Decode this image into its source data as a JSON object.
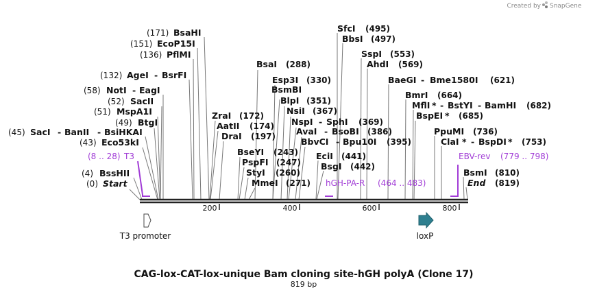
{
  "brand": {
    "created_by": "Created by",
    "name": "SnapGene"
  },
  "title": "CAG-lox-CAT-lox-unique Bam cloning site-hGH polyA (Clone 17)",
  "subtitle": "819 bp",
  "left_labels": [
    {
      "pos": "(171)",
      "a": "BsaHI"
    },
    {
      "pos": "(151)",
      "a": "EcoP15I"
    },
    {
      "pos": "(136)",
      "a": "PflMI"
    },
    {
      "pos": "(132)",
      "a": "AgeI",
      "b": "BsrFI"
    },
    {
      "pos": "(58)",
      "a": "NotI",
      "b": "EagI"
    },
    {
      "pos": "(52)",
      "a": "SacII"
    },
    {
      "pos": "(51)",
      "a": "MspA1I"
    },
    {
      "pos": "(49)",
      "a": "BtgI"
    },
    {
      "pos": "(45)",
      "a": "SacI",
      "b": "BanII",
      "c": "BsiHKAI"
    },
    {
      "pos": "(43)",
      "a": "Eco53kI"
    },
    {
      "pos": "(4)",
      "a": "BssHII"
    },
    {
      "pos": "(0)",
      "a": "Start"
    }
  ],
  "middle_labels": [
    {
      "a": "BsaI",
      "pos": "(288)"
    },
    {
      "a": "Esp3I",
      "pos": "(330)"
    },
    {
      "a": "BsmBI"
    },
    {
      "a": "BlpI",
      "pos": "(351)"
    },
    {
      "a": "NsiI",
      "pos": "(367)"
    },
    {
      "a": "NspI",
      "b": "SphI",
      "pos": "(369)"
    },
    {
      "a": "AvaI",
      "b": "BsoBI",
      "pos": "(386)"
    },
    {
      "a": "BbvCI",
      "b": "Bpu10I",
      "pos": "(395)"
    },
    {
      "a": "ZraI",
      "pos": "(172)"
    },
    {
      "a": "AatII",
      "pos": "(174)"
    },
    {
      "a": "DraI",
      "pos": "(197)"
    },
    {
      "a": "BseYI",
      "pos": "(243)"
    },
    {
      "a": "PspFI",
      "pos": "(247)"
    },
    {
      "a": "StyI",
      "pos": "(260)"
    },
    {
      "a": "MmeI",
      "pos": "(271)"
    },
    {
      "a": "EciI",
      "pos": "(441)"
    },
    {
      "a": "BsgI",
      "pos": "(442)"
    }
  ],
  "right_labels": [
    {
      "a": "SfcI",
      "pos": "(495)"
    },
    {
      "a": "BbsI",
      "pos": "(497)"
    },
    {
      "a": "SspI",
      "pos": "(553)"
    },
    {
      "a": "AhdI",
      "pos": "(569)"
    },
    {
      "a": "BaeGI",
      "b": "Bme1580I",
      "pos": "(621)"
    },
    {
      "a": "BmrI",
      "pos": "(664)"
    },
    {
      "a": "MflI",
      "star": "*",
      "b": "BstYI",
      "c": "BamHI",
      "pos": "(682)"
    },
    {
      "a": "BspEI",
      "star": "*",
      "pos": "(685)"
    },
    {
      "a": "PpuMI",
      "pos": "(736)"
    },
    {
      "a": "ClaI",
      "star": "*",
      "b": "BspDI",
      "star2": "*",
      "pos": "(753)"
    },
    {
      "a": "BsmI",
      "pos": "(810)"
    },
    {
      "a": "End",
      "pos": "(819)"
    }
  ],
  "primers": [
    {
      "range": "(8 .. 28)",
      "name": "T3"
    },
    {
      "name": "hGH-PA-R",
      "range": "(464 .. 483)"
    },
    {
      "name": "EBV-rev",
      "range": "(779 .. 798)"
    }
  ],
  "axis": {
    "ticks": [
      "200",
      "400",
      "600",
      "800"
    ],
    "length_bp": 819
  },
  "features": [
    {
      "name": "T3 promoter",
      "color": "#ffffff"
    },
    {
      "name": "loxP",
      "color": "#2e7f8f"
    }
  ],
  "colors": {
    "primer": "#a13cd6",
    "backbone": "#222222",
    "lead": "#777777",
    "loxp": "#2e7f8f"
  }
}
